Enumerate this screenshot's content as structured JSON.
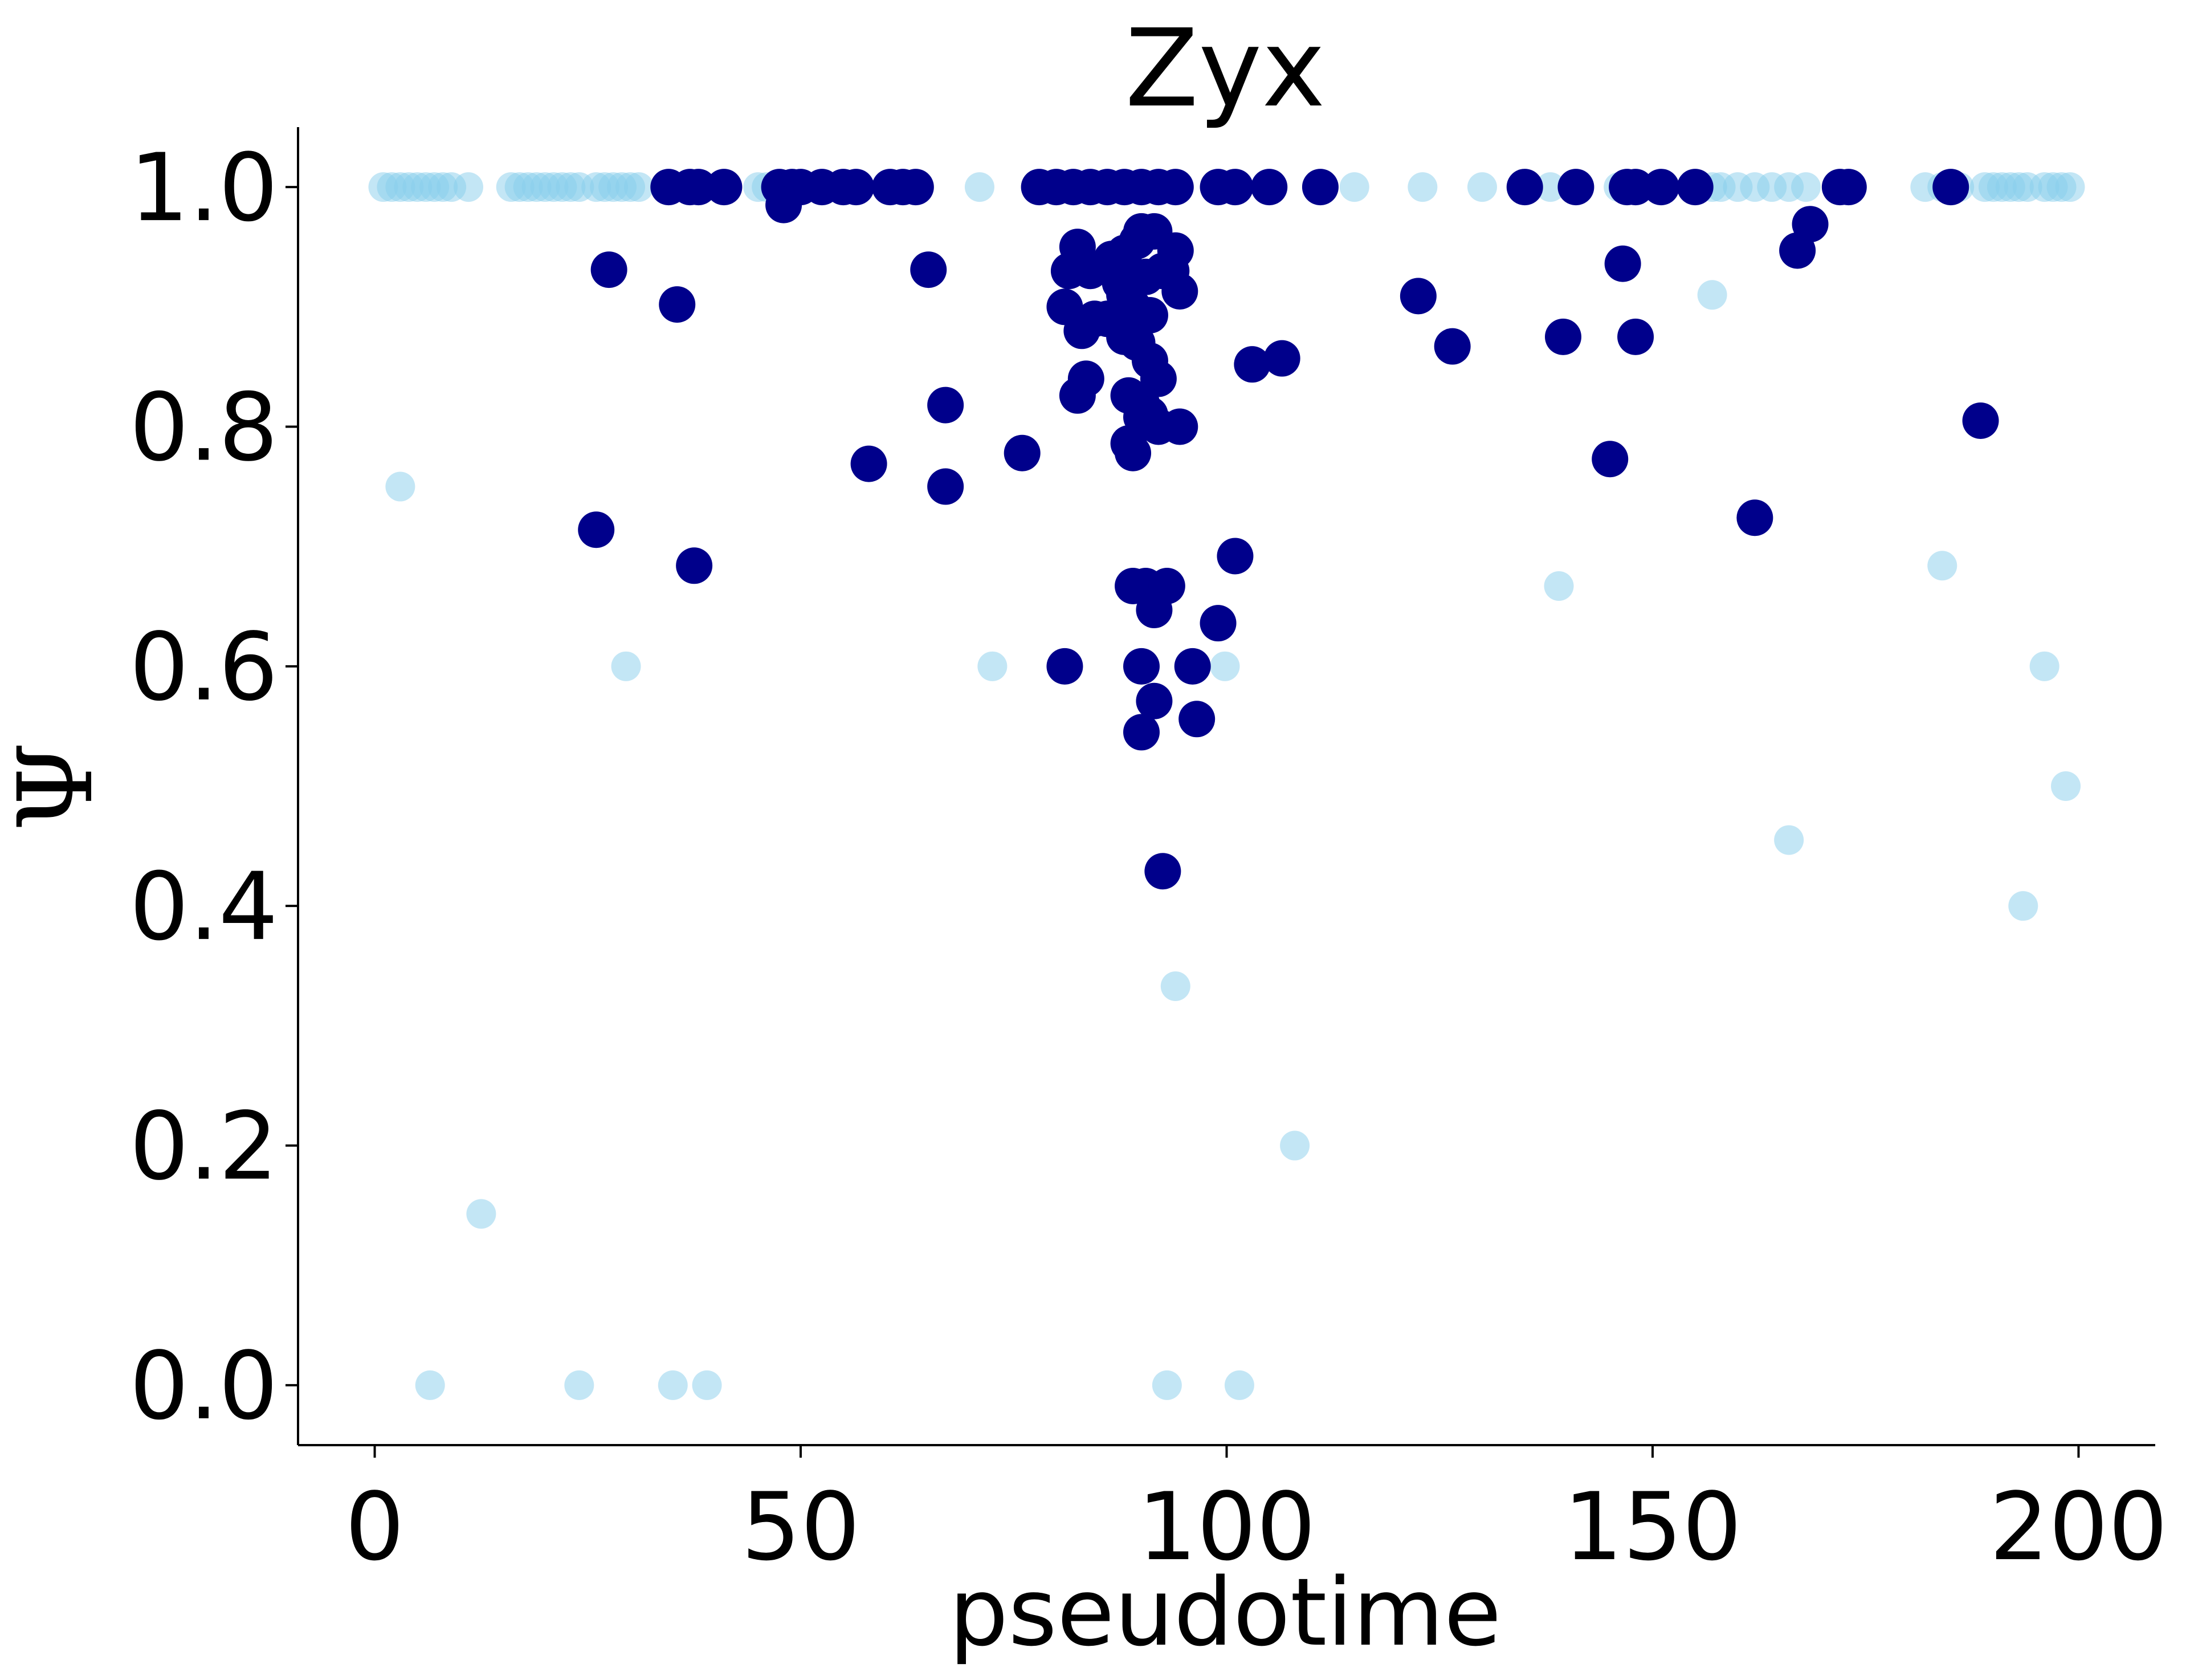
{
  "chart_data": {
    "type": "scatter",
    "title": "Zyx",
    "xlabel": "pseudotime",
    "ylabel": "Ψ",
    "xlim": [
      -9,
      209
    ],
    "ylim": [
      -0.05,
      1.05
    ],
    "xticks": [
      0,
      50,
      100,
      150,
      200
    ],
    "xtick_labels": [
      "0",
      "50",
      "100",
      "150",
      "200"
    ],
    "yticks": [
      0.0,
      0.2,
      0.4,
      0.6,
      0.8,
      1.0
    ],
    "ytick_labels": [
      "0.0",
      "0.2",
      "0.4",
      "0.6",
      "0.8",
      "1.0"
    ],
    "series": [
      {
        "name": "light",
        "color": "#87ceeb",
        "alpha": 0.5,
        "points": [
          [
            1,
            1.0
          ],
          [
            2,
            1.0
          ],
          [
            3,
            1.0
          ],
          [
            4,
            1.0
          ],
          [
            5,
            1.0
          ],
          [
            6,
            1.0
          ],
          [
            7,
            1.0
          ],
          [
            8,
            1.0
          ],
          [
            9,
            1.0
          ],
          [
            11,
            1.0
          ],
          [
            16,
            1.0
          ],
          [
            17,
            1.0
          ],
          [
            18,
            1.0
          ],
          [
            19,
            1.0
          ],
          [
            20,
            1.0
          ],
          [
            21,
            1.0
          ],
          [
            22,
            1.0
          ],
          [
            23,
            1.0
          ],
          [
            24,
            1.0
          ],
          [
            26,
            1.0
          ],
          [
            27,
            1.0
          ],
          [
            28,
            1.0
          ],
          [
            29,
            1.0
          ],
          [
            30,
            1.0
          ],
          [
            31,
            1.0
          ],
          [
            45,
            1.0
          ],
          [
            46,
            1.0
          ],
          [
            71,
            1.0
          ],
          [
            115,
            1.0
          ],
          [
            123,
            1.0
          ],
          [
            130,
            1.0
          ],
          [
            138,
            1.0
          ],
          [
            146,
            1.0
          ],
          [
            157,
            1.0
          ],
          [
            158,
            1.0
          ],
          [
            160,
            1.0
          ],
          [
            162,
            1.0
          ],
          [
            164,
            1.0
          ],
          [
            166,
            1.0
          ],
          [
            168,
            1.0
          ],
          [
            182,
            1.0
          ],
          [
            184,
            1.0
          ],
          [
            186,
            1.0
          ],
          [
            189,
            1.0
          ],
          [
            190,
            1.0
          ],
          [
            191,
            1.0
          ],
          [
            192,
            1.0
          ],
          [
            193,
            1.0
          ],
          [
            194,
            1.0
          ],
          [
            196,
            1.0
          ],
          [
            197,
            1.0
          ],
          [
            198,
            1.0
          ],
          [
            199,
            1.0
          ],
          [
            3,
            0.75
          ],
          [
            29.5,
            0.6
          ],
          [
            72.5,
            0.6
          ],
          [
            99.8,
            0.6
          ],
          [
            139,
            0.667
          ],
          [
            157,
            0.91
          ],
          [
            184,
            0.684
          ],
          [
            196,
            0.6
          ],
          [
            198.5,
            0.5
          ],
          [
            166,
            0.455
          ],
          [
            193.5,
            0.4
          ],
          [
            94,
            0.333
          ],
          [
            108,
            0.2
          ],
          [
            12.5,
            0.143
          ],
          [
            6.5,
            0.0
          ],
          [
            24,
            0.0
          ],
          [
            35,
            0.0
          ],
          [
            39,
            0.0
          ],
          [
            93,
            0.0
          ],
          [
            101.5,
            0.0
          ]
        ]
      },
      {
        "name": "dark",
        "color": "#00008b",
        "alpha": 1.0,
        "points": [
          [
            34.5,
            1.0
          ],
          [
            37,
            1.0
          ],
          [
            38,
            1.0
          ],
          [
            41,
            1.0
          ],
          [
            47.5,
            1.0
          ],
          [
            49,
            1.0
          ],
          [
            50,
            1.0
          ],
          [
            52.5,
            1.0
          ],
          [
            55,
            1.0
          ],
          [
            56.5,
            1.0
          ],
          [
            60.5,
            1.0
          ],
          [
            62,
            1.0
          ],
          [
            63.5,
            1.0
          ],
          [
            78,
            1.0
          ],
          [
            80,
            1.0
          ],
          [
            82,
            1.0
          ],
          [
            84,
            1.0
          ],
          [
            86,
            1.0
          ],
          [
            88,
            1.0
          ],
          [
            90,
            1.0
          ],
          [
            92,
            1.0
          ],
          [
            94,
            1.0
          ],
          [
            99,
            1.0
          ],
          [
            101,
            1.0
          ],
          [
            105,
            1.0
          ],
          [
            111,
            1.0
          ],
          [
            135,
            1.0
          ],
          [
            141,
            1.0
          ],
          [
            147,
            1.0
          ],
          [
            148,
            1.0
          ],
          [
            151,
            1.0
          ],
          [
            155,
            1.0
          ],
          [
            172,
            1.0
          ],
          [
            173,
            1.0
          ],
          [
            185,
            1.0
          ],
          [
            48,
            0.985
          ],
          [
            90,
            0.963
          ],
          [
            91.5,
            0.963
          ],
          [
            89.5,
            0.955
          ],
          [
            94,
            0.947
          ],
          [
            82.5,
            0.95
          ],
          [
            88,
            0.945
          ],
          [
            86.5,
            0.94
          ],
          [
            81.5,
            0.93
          ],
          [
            84,
            0.93
          ],
          [
            92.5,
            0.93
          ],
          [
            93.5,
            0.93
          ],
          [
            89,
            0.925
          ],
          [
            90.5,
            0.925
          ],
          [
            87.5,
            0.92
          ],
          [
            94.5,
            0.913
          ],
          [
            88,
            0.91
          ],
          [
            81,
            0.9
          ],
          [
            89,
            0.9
          ],
          [
            91,
            0.893
          ],
          [
            84.5,
            0.89
          ],
          [
            86,
            0.89
          ],
          [
            83,
            0.88
          ],
          [
            88,
            0.875
          ],
          [
            89.5,
            0.87
          ],
          [
            91,
            0.855
          ],
          [
            92,
            0.84
          ],
          [
            83.5,
            0.84
          ],
          [
            82.5,
            0.826
          ],
          [
            88.5,
            0.826
          ],
          [
            90,
            0.82
          ],
          [
            91,
            0.81
          ],
          [
            90,
            0.808
          ],
          [
            92,
            0.8
          ],
          [
            94.5,
            0.8
          ],
          [
            88.5,
            0.786
          ],
          [
            89,
            0.778
          ],
          [
            27.5,
            0.931
          ],
          [
            35.5,
            0.902
          ],
          [
            65,
            0.931
          ],
          [
            67,
            0.818
          ],
          [
            58,
            0.769
          ],
          [
            67,
            0.75
          ],
          [
            76,
            0.778
          ],
          [
            26,
            0.714
          ],
          [
            37.5,
            0.684
          ],
          [
            101,
            0.692
          ],
          [
            89,
            0.667
          ],
          [
            90.5,
            0.667
          ],
          [
            93,
            0.667
          ],
          [
            91.5,
            0.647
          ],
          [
            99,
            0.636
          ],
          [
            81,
            0.6
          ],
          [
            90,
            0.6
          ],
          [
            96,
            0.6
          ],
          [
            91.5,
            0.571
          ],
          [
            96.5,
            0.556
          ],
          [
            90,
            0.545
          ],
          [
            92.5,
            0.429
          ],
          [
            103,
            0.852
          ],
          [
            106.5,
            0.857
          ],
          [
            122.5,
            0.909
          ],
          [
            126.5,
            0.867
          ],
          [
            139.5,
            0.875
          ],
          [
            146.5,
            0.936
          ],
          [
            148,
            0.875
          ],
          [
            145,
            0.773
          ],
          [
            162,
            0.724
          ],
          [
            167,
            0.947
          ],
          [
            168.5,
            0.969
          ],
          [
            188.5,
            0.805
          ]
        ]
      }
    ]
  }
}
